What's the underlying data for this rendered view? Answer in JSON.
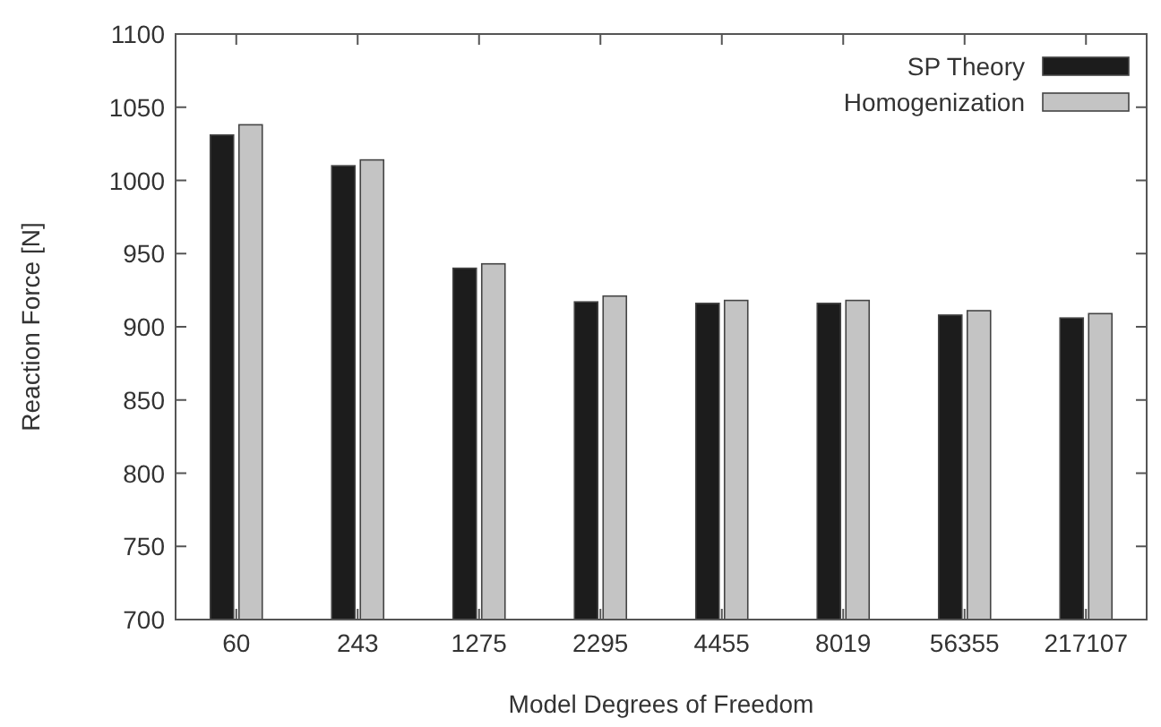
{
  "chart_data": {
    "type": "bar",
    "xlabel": "Model Degrees of Freedom",
    "ylabel": "Reaction Force [N]",
    "categories": [
      "60",
      "243",
      "1275",
      "2295",
      "4455",
      "8019",
      "56355",
      "217107"
    ],
    "series": [
      {
        "name": "SP Theory",
        "color": "#1c1c1c",
        "values": [
          1031,
          1010,
          940,
          917,
          916,
          916,
          908,
          906
        ]
      },
      {
        "name": "Homogenization",
        "color": "#c4c4c4",
        "values": [
          1038,
          1014,
          943,
          921,
          918,
          918,
          911,
          909
        ]
      }
    ],
    "ylim": [
      700,
      1100
    ],
    "yticks": [
      700,
      750,
      800,
      850,
      900,
      950,
      1000,
      1050,
      1100
    ],
    "legend": "top right"
  }
}
